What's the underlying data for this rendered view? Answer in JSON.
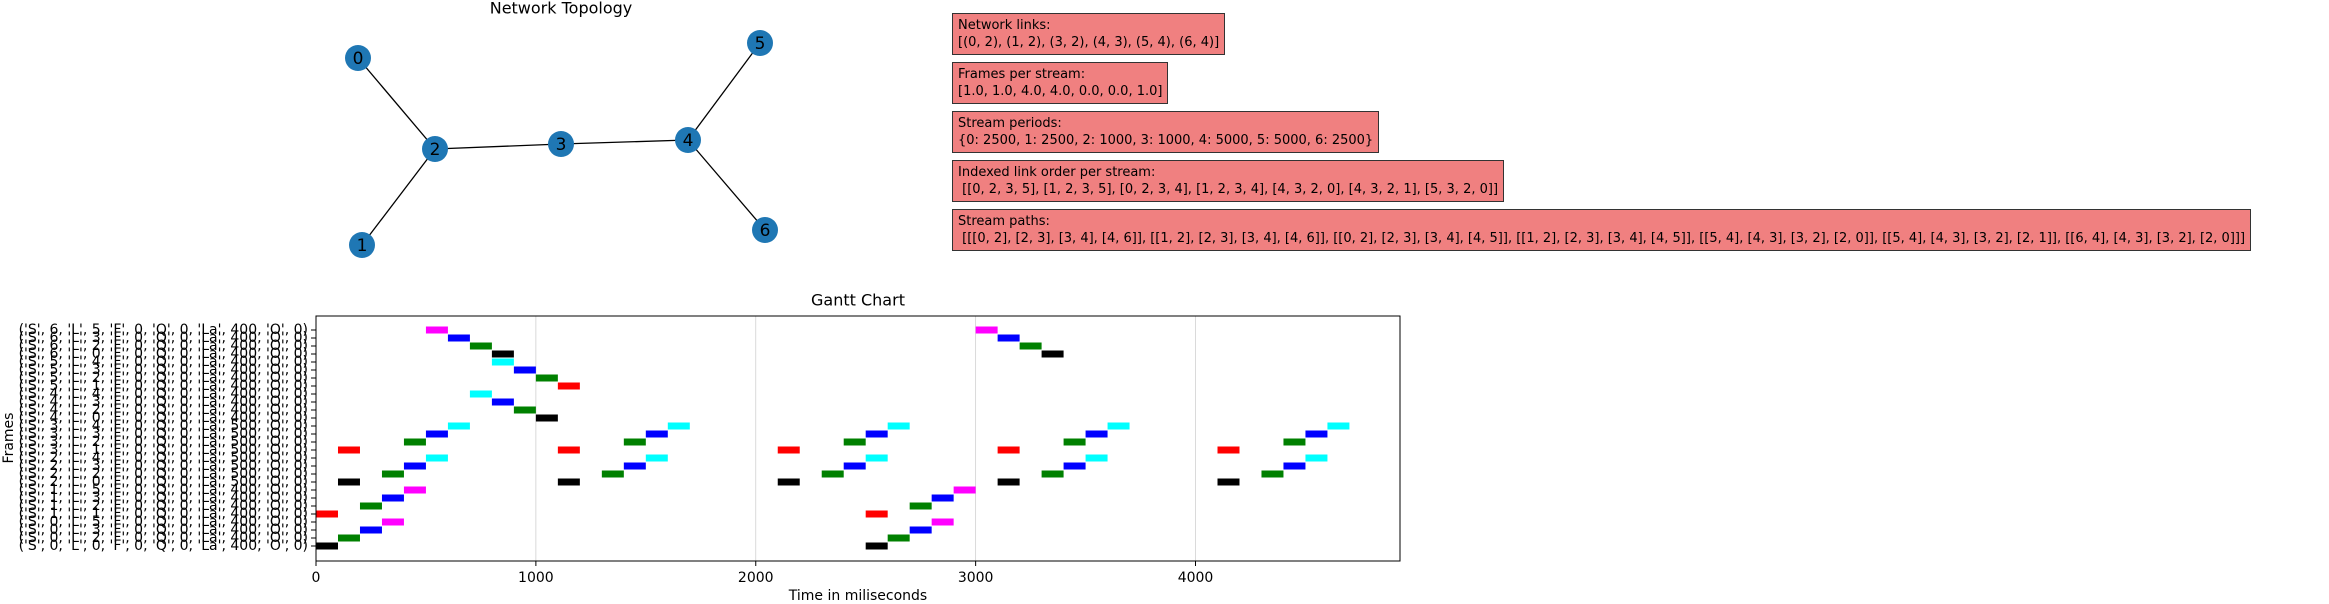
{
  "chart_data": [
    {
      "type": "network",
      "title": "Network  Topology",
      "nodes": [
        "0",
        "1",
        "2",
        "3",
        "4",
        "5",
        "6"
      ],
      "edges": [
        [
          0,
          2
        ],
        [
          1,
          2
        ],
        [
          3,
          2
        ],
        [
          4,
          3
        ],
        [
          5,
          4
        ],
        [
          6,
          4
        ]
      ],
      "node_color": "#1f77b4",
      "annotation_color": "#f08080",
      "annotations": [
        {
          "title": "Network links:",
          "text": "[(0, 2), (1, 2), (3, 2), (4, 3), (5, 4), (6, 4)]"
        },
        {
          "title": "Frames per stream:",
          "text": "[1.0, 1.0, 4.0, 4.0, 0.0, 0.0, 1.0]"
        },
        {
          "title": "Stream periods:",
          "text": "{0: 2500, 1: 2500, 2: 1000, 3: 1000, 4: 5000, 5: 5000, 6: 2500}"
        },
        {
          "title": "Indexed link order per stream:",
          "text": " [[0, 2, 3, 5], [1, 2, 3, 5], [0, 2, 3, 4], [1, 2, 3, 4], [4, 3, 2, 0], [4, 3, 2, 1], [5, 3, 2, 0]]"
        },
        {
          "title": "Stream paths:",
          "text": " [[[0, 2], [2, 3], [3, 4], [4, 6]], [[1, 2], [2, 3], [3, 4], [4, 6]], [[0, 2], [2, 3], [3, 4], [4, 5]], [[1, 2], [2, 3], [3, 4], [4, 5]], [[5, 4], [4, 3], [3, 2], [2, 0]], [[5, 4], [4, 3], [3, 2], [2, 1]], [[6, 4], [4, 3], [3, 2], [2, 0]]]"
        }
      ]
    },
    {
      "type": "gantt",
      "title": "Gantt Chart",
      "x_label": "Time in miliseconds",
      "y_label": "Frames",
      "xlim": [
        0,
        4930
      ],
      "xticks": [
        0,
        1000,
        2000,
        3000,
        4000
      ],
      "grid": true,
      "duration": 100,
      "rows": [
        {
          "label": "('S', 0, 'L', 0, 'F', 0, 'Q', 0, 'La', 400, 'O', 0)",
          "color": "black",
          "starts": [
            0,
            2500
          ]
        },
        {
          "label": "('S', 0, 'L', 2, 'F', 0, 'Q', 0, 'La', 400, 'O', 0)",
          "color": "green",
          "starts": [
            100,
            2600
          ]
        },
        {
          "label": "('S', 0, 'L', 3, 'F', 0, 'Q', 0, 'La', 400, 'O', 0)",
          "color": "blue",
          "starts": [
            200,
            2700
          ]
        },
        {
          "label": "('S', 0, 'L', 5, 'F', 0, 'Q', 0, 'La', 400, 'O', 0)",
          "color": "magenta",
          "starts": [
            300,
            2800
          ]
        },
        {
          "label": "('S', 1, 'L', 1, 'F', 0, 'Q', 0, 'La', 400, 'O', 0)",
          "color": "red",
          "starts": [
            0,
            2500
          ]
        },
        {
          "label": "('S', 1, 'L', 2, 'F', 0, 'Q', 0, 'La', 400, 'O', 0)",
          "color": "green",
          "starts": [
            200,
            2700
          ]
        },
        {
          "label": "('S', 1, 'L', 3, 'F', 0, 'Q', 0, 'La', 400, 'O', 0)",
          "color": "blue",
          "starts": [
            300,
            2800
          ]
        },
        {
          "label": "('S', 1, 'L', 5, 'F', 0, 'Q', 0, 'La', 400, 'O', 0)",
          "color": "magenta",
          "starts": [
            400,
            2900
          ]
        },
        {
          "label": "('S', 2, 'L', 0, 'F', 0, 'Q', 0, 'La', 500, 'O', 0)",
          "color": "black",
          "starts": [
            100,
            1100,
            2100,
            3100,
            4100
          ]
        },
        {
          "label": "('S', 2, 'L', 2, 'F', 0, 'Q', 0, 'La', 500, 'O', 0)",
          "color": "green",
          "starts": [
            300,
            1300,
            2300,
            3300,
            4300
          ]
        },
        {
          "label": "('S', 2, 'L', 3, 'F', 0, 'Q', 0, 'La', 500, 'O', 0)",
          "color": "blue",
          "starts": [
            400,
            1400,
            2400,
            3400,
            4400
          ]
        },
        {
          "label": "('S', 2, 'L', 4, 'F', 0, 'Q', 0, 'La', 500, 'O', 0)",
          "color": "cyan",
          "starts": [
            500,
            1500,
            2500,
            3500,
            4500
          ]
        },
        {
          "label": "('S', 3, 'L', 1, 'F', 0, 'Q', 0, 'La', 500, 'O', 0)",
          "color": "red",
          "starts": [
            100,
            1100,
            2100,
            3100,
            4100
          ]
        },
        {
          "label": "('S', 3, 'L', 2, 'F', 0, 'Q', 0, 'La', 500, 'O', 0)",
          "color": "green",
          "starts": [
            400,
            1400,
            2400,
            3400,
            4400
          ]
        },
        {
          "label": "('S', 3, 'L', 3, 'F', 0, 'Q', 0, 'La', 500, 'O', 0)",
          "color": "blue",
          "starts": [
            500,
            1500,
            2500,
            3500,
            4500
          ]
        },
        {
          "label": "('S', 3, 'L', 4, 'F', 0, 'Q', 0, 'La', 500, 'O', 0)",
          "color": "cyan",
          "starts": [
            600,
            1600,
            2600,
            3600,
            4600
          ]
        },
        {
          "label": "('S', 4, 'L', 0, 'F', 0, 'Q', 0, 'La', 400, 'O', 0)",
          "color": "black",
          "starts": [
            1000
          ]
        },
        {
          "label": "('S', 4, 'L', 2, 'F', 0, 'Q', 0, 'La', 400, 'O', 0)",
          "color": "green",
          "starts": [
            900
          ]
        },
        {
          "label": "('S', 4, 'L', 3, 'F', 0, 'Q', 0, 'La', 400, 'O', 0)",
          "color": "blue",
          "starts": [
            800
          ]
        },
        {
          "label": "('S', 4, 'L', 4, 'F', 0, 'Q', 0, 'La', 400, 'O', 0)",
          "color": "cyan",
          "starts": [
            700
          ]
        },
        {
          "label": "('S', 5, 'L', 1, 'F', 0, 'Q', 0, 'La', 400, 'O', 0)",
          "color": "red",
          "starts": [
            1100
          ]
        },
        {
          "label": "('S', 5, 'L', 2, 'F', 0, 'Q', 0, 'La', 400, 'O', 0)",
          "color": "green",
          "starts": [
            1000
          ]
        },
        {
          "label": "('S', 5, 'L', 3, 'F', 0, 'Q', 0, 'La', 400, 'O', 0)",
          "color": "blue",
          "starts": [
            900
          ]
        },
        {
          "label": "('S', 5, 'L', 4, 'F', 0, 'Q', 0, 'La', 400, 'O', 0)",
          "color": "cyan",
          "starts": [
            800
          ]
        },
        {
          "label": "('S', 6, 'L', 0, 'F', 0, 'Q', 0, 'La', 400, 'O', 0)",
          "color": "black",
          "starts": [
            800,
            3300
          ]
        },
        {
          "label": "('S', 6, 'L', 2, 'F', 0, 'Q', 0, 'La', 400, 'O', 0)",
          "color": "green",
          "starts": [
            700,
            3200
          ]
        },
        {
          "label": "('S', 6, 'L', 3, 'F', 0, 'Q', 0, 'La', 400, 'O', 0)",
          "color": "blue",
          "starts": [
            600,
            3100
          ]
        },
        {
          "label": "('S', 6, 'L', 5, 'F', 0, 'Q', 0, 'La', 400, 'O', 0)",
          "color": "magenta",
          "starts": [
            500,
            3000
          ]
        }
      ]
    }
  ]
}
